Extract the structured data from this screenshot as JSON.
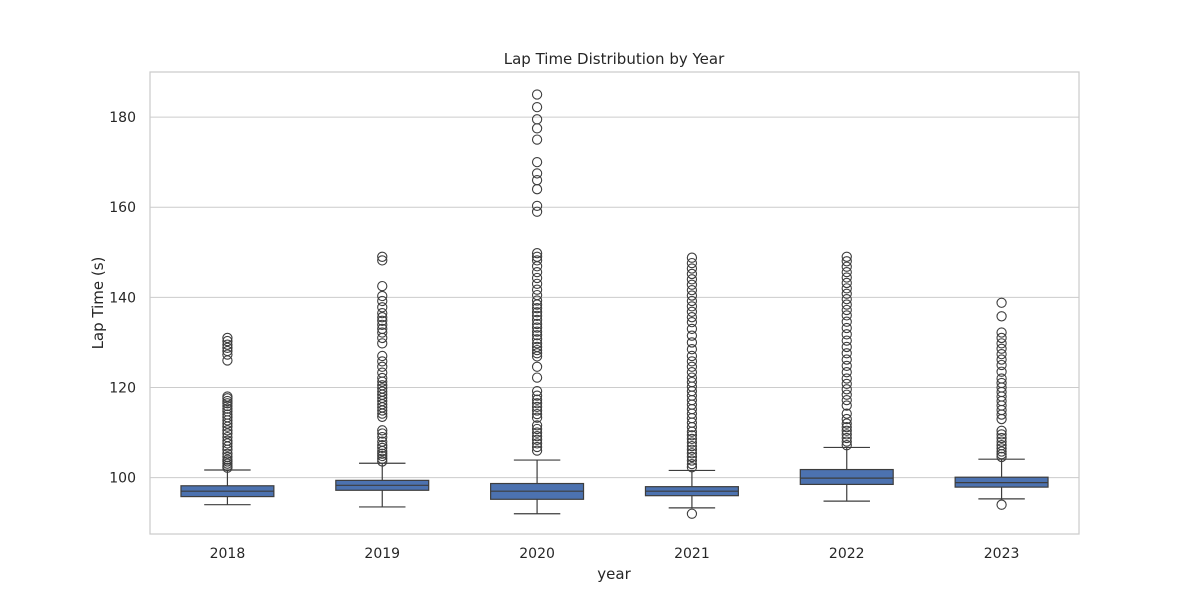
{
  "chart_data": {
    "type": "box",
    "title": "Lap Time Distribution by Year",
    "xlabel": "year",
    "ylabel": "Lap Time (s)",
    "ylim": [
      87.5,
      190
    ],
    "yticks": [
      100,
      120,
      140,
      160,
      180
    ],
    "grid": "horizontal",
    "box_color": "#4c72b0",
    "categories": [
      "2018",
      "2019",
      "2020",
      "2021",
      "2022",
      "2023"
    ],
    "series": [
      {
        "category": "2018",
        "whisker_low": 94.0,
        "q1": 95.8,
        "median": 97.0,
        "q3": 98.2,
        "whisker_high": 101.7,
        "outliers": [
          102.2,
          102.6,
          103.1,
          103.6,
          104.0,
          104.6,
          105.3,
          106.2,
          106.9,
          107.6,
          108.2,
          109.0,
          109.8,
          110.5,
          111.3,
          112.0,
          112.7,
          113.4,
          114.0,
          114.7,
          115.3,
          115.9,
          116.5,
          117.0,
          117.6,
          118.0,
          126.0,
          127.3,
          128.1,
          128.8,
          129.5,
          130.3,
          131.0
        ]
      },
      {
        "category": "2019",
        "whisker_low": 93.5,
        "q1": 97.2,
        "median": 98.3,
        "q3": 99.4,
        "whisker_high": 103.2,
        "outliers": [
          103.6,
          104.2,
          104.8,
          105.3,
          105.9,
          106.6,
          107.2,
          108.0,
          109.0,
          109.8,
          110.5,
          113.5,
          114.2,
          114.9,
          115.6,
          116.3,
          117.0,
          117.7,
          118.4,
          119.1,
          119.8,
          120.5,
          121.3,
          122.1,
          123.3,
          124.6,
          125.8,
          127.0,
          129.8,
          131.0,
          132.2,
          133.0,
          133.9,
          134.8,
          135.6,
          136.5,
          137.8,
          139.2,
          140.3,
          142.5,
          148.2,
          149.0
        ]
      },
      {
        "category": "2020",
        "whisker_low": 92.0,
        "q1": 95.2,
        "median": 97.0,
        "q3": 98.7,
        "whisker_high": 103.9,
        "outliers": [
          106.0,
          106.8,
          107.6,
          108.4,
          109.2,
          110.0,
          110.8,
          111.6,
          113.3,
          114.1,
          114.9,
          115.7,
          116.5,
          117.3,
          118.2,
          119.2,
          122.2,
          124.6,
          126.9,
          127.6,
          128.3,
          129.0,
          129.8,
          130.7,
          131.6,
          132.4,
          133.3,
          134.1,
          135.0,
          135.9,
          136.7,
          137.6,
          138.4,
          139.3,
          140.5,
          141.7,
          143.0,
          144.3,
          145.6,
          146.9,
          148.2,
          149.0,
          149.8,
          159.0,
          160.3,
          164.0,
          166.0,
          167.5,
          170.0,
          175.0,
          177.5,
          179.5,
          182.2,
          185.0
        ]
      },
      {
        "category": "2021",
        "whisker_low": 93.3,
        "q1": 96.0,
        "median": 97.0,
        "q3": 98.0,
        "whisker_high": 101.6,
        "outliers": [
          92.0,
          102.3,
          103.0,
          103.8,
          104.6,
          105.4,
          106.2,
          107.0,
          107.8,
          108.6,
          109.4,
          110.2,
          111.2,
          112.2,
          113.2,
          114.2,
          115.2,
          116.2,
          117.2,
          118.2,
          119.2,
          120.2,
          121.2,
          122.2,
          123.4,
          124.6,
          125.8,
          127.0,
          128.5,
          130.0,
          131.5,
          133.0,
          134.5,
          135.6,
          136.8,
          138.0,
          139.2,
          140.4,
          141.6,
          142.8,
          144.0,
          145.2,
          146.4,
          147.6,
          148.8
        ]
      },
      {
        "category": "2022",
        "whisker_low": 94.8,
        "q1": 98.5,
        "median": 99.9,
        "q3": 101.8,
        "whisker_high": 106.7,
        "outliers": [
          107.2,
          108.0,
          108.8,
          109.6,
          110.4,
          111.2,
          112.0,
          113.0,
          114.2,
          116.0,
          117.2,
          118.4,
          119.6,
          120.8,
          122.0,
          123.4,
          124.8,
          126.2,
          127.6,
          129.0,
          130.4,
          131.8,
          133.2,
          134.6,
          136.0,
          137.2,
          138.4,
          139.6,
          140.8,
          142.0,
          143.2,
          144.4,
          145.6,
          146.8,
          148.0,
          149.0
        ]
      },
      {
        "category": "2023",
        "whisker_low": 95.3,
        "q1": 97.9,
        "median": 98.9,
        "q3": 100.1,
        "whisker_high": 104.1,
        "outliers": [
          94.0,
          104.6,
          105.2,
          105.8,
          106.5,
          107.2,
          108.0,
          108.8,
          109.6,
          110.4,
          113.0,
          114.0,
          115.0,
          116.0,
          117.0,
          118.0,
          119.0,
          120.0,
          121.0,
          122.0,
          123.5,
          125.0,
          126.2,
          127.4,
          128.6,
          129.8,
          131.0,
          132.2,
          135.8,
          138.8
        ]
      }
    ]
  }
}
